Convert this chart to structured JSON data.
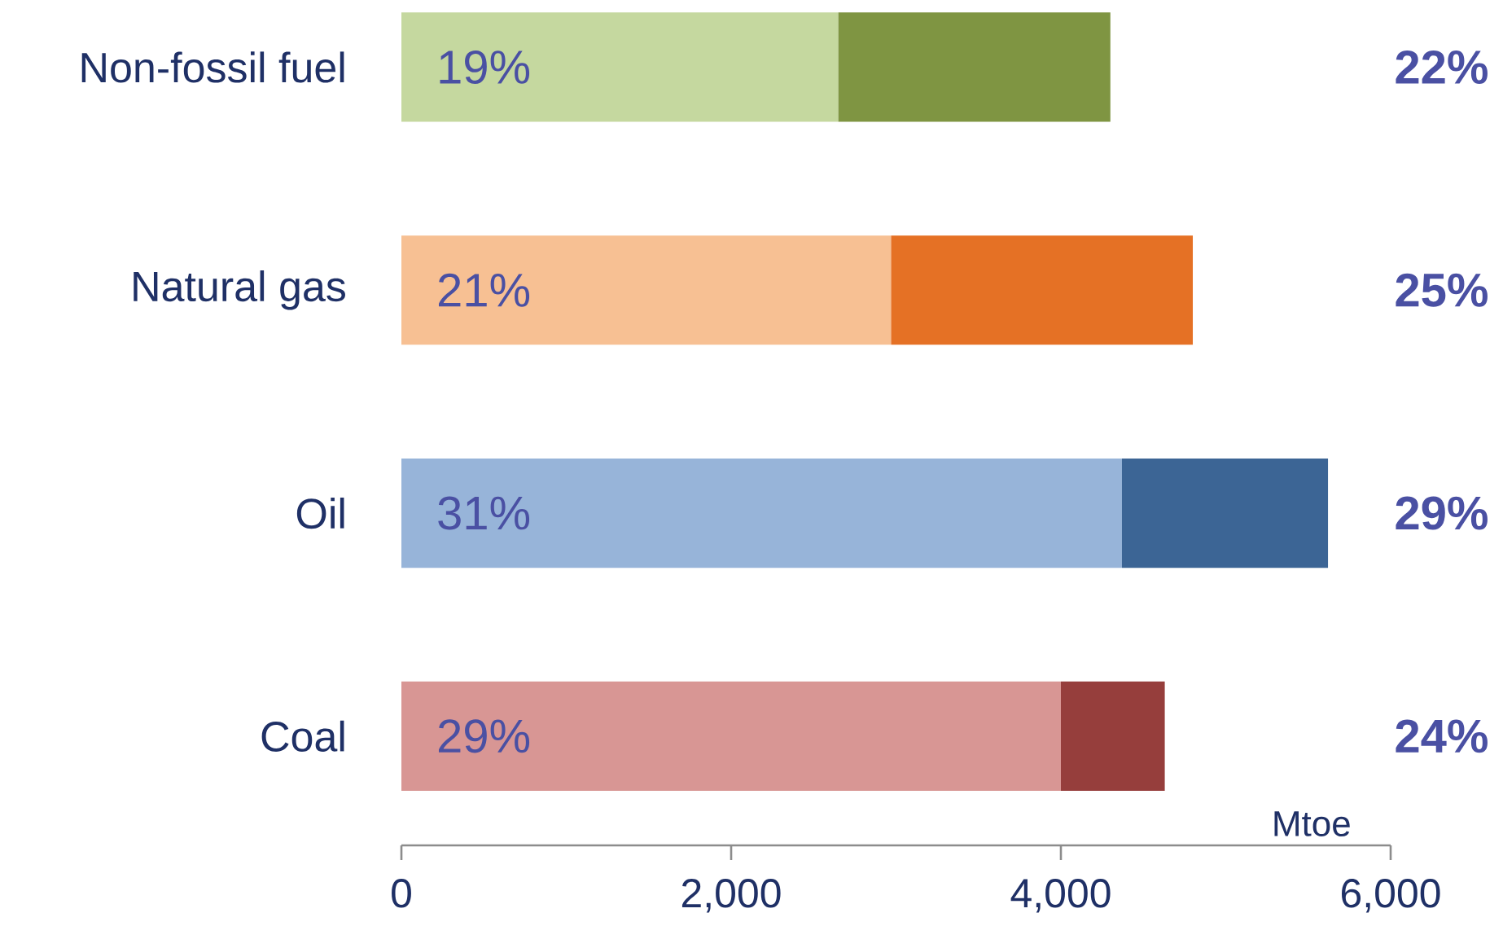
{
  "chart_data": {
    "type": "bar",
    "orientation": "horizontal",
    "stacked": true,
    "xlabel": "Mtoe",
    "categories": [
      "Non-fossil fuel",
      "Natural gas",
      "Oil",
      "Coal"
    ],
    "series": [
      {
        "colors": [
          "#c5d89f",
          "#f7c093",
          "#97b4d9",
          "#d89694"
        ],
        "values": [
          2650,
          2970,
          4370,
          4000
        ]
      },
      {
        "colors": [
          "#7f9542",
          "#e57125",
          "#3c6595",
          "#963e3c"
        ],
        "values": [
          1650,
          1830,
          1250,
          630
        ]
      }
    ],
    "annotations": [
      "19%",
      "21%",
      "31%",
      "29%",
      "22%",
      "25%",
      "29%",
      "24%"
    ],
    "xlim": [
      0,
      6000
    ],
    "xticks": [
      0,
      {
        "value": 2000,
        "label": "2,000"
      },
      {
        "value": 4000,
        "label": "4,000"
      },
      {
        "value": 6000,
        "label": "6,000"
      }
    ],
    "grid": false
  }
}
